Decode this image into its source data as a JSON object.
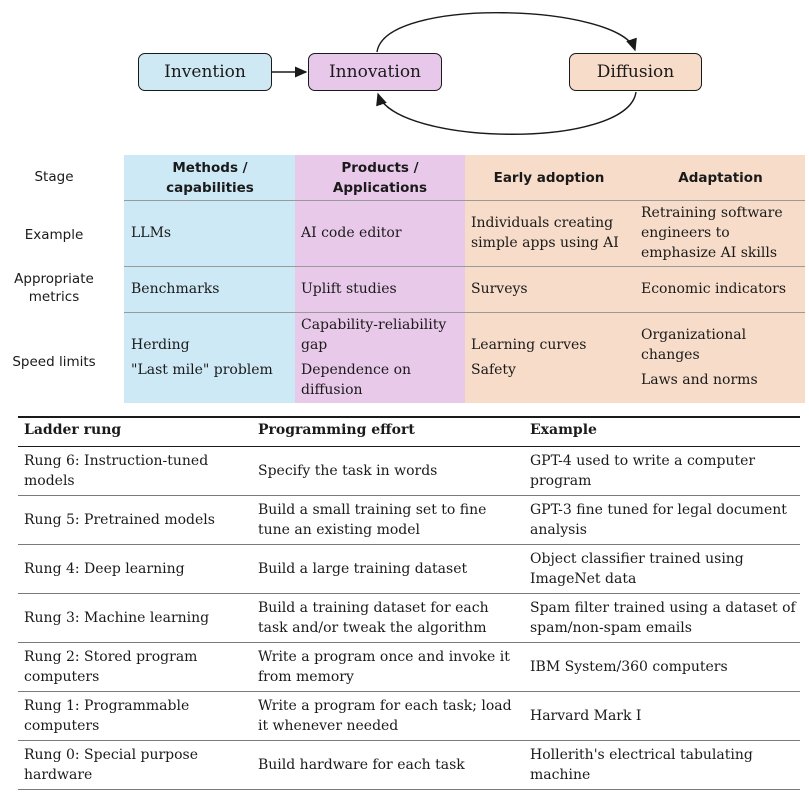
{
  "flow": {
    "nodes": {
      "invention": "Invention",
      "innovation": "Innovation",
      "diffusion": "Diffusion"
    }
  },
  "stage_table": {
    "row_labels": {
      "stage": "Stage",
      "example": "Example",
      "metrics_line1": "Appropriate",
      "metrics_line2": "metrics",
      "speed": "Speed limits"
    },
    "columns": {
      "methods": "Methods / capabilities",
      "products": "Products / Applications",
      "early": "Early adoption",
      "adaptation": "Adaptation"
    },
    "examples": {
      "methods": "LLMs",
      "products": "AI code editor",
      "early": "Individuals creating simple apps using AI",
      "adaptation": "Retraining software engineers to emphasize AI skills"
    },
    "metrics": {
      "methods": "Benchmarks",
      "products": "Uplift studies",
      "early": "Surveys",
      "adaptation": "Economic indicators"
    },
    "speed_limits": {
      "methods": [
        "Herding",
        "\"Last mile\" problem"
      ],
      "products": [
        "Capability-reliability gap",
        "Dependence on diffusion"
      ],
      "early": [
        "Learning curves",
        "Safety"
      ],
      "adaptation": [
        "Organizational changes",
        "Laws and norms"
      ]
    }
  },
  "ladder": {
    "headers": {
      "rung": "Ladder rung",
      "effort": "Programming effort",
      "example": "Example"
    },
    "rows": [
      {
        "rung": "Rung 6: Instruction-tuned models",
        "effort": "Specify the task in words",
        "example": "GPT-4 used to write a computer program"
      },
      {
        "rung": "Rung 5: Pretrained models",
        "effort": "Build a small training set to fine tune an existing model",
        "example": "GPT-3 fine tuned for legal document analysis"
      },
      {
        "rung": "Rung 4: Deep learning",
        "effort": "Build a large training dataset",
        "example": "Object classifier trained using ImageNet data"
      },
      {
        "rung": "Rung 3: Machine learning",
        "effort": "Build a training dataset for each task and/or tweak the algorithm",
        "example": "Spam filter trained using a dataset of spam/non-spam emails"
      },
      {
        "rung": "Rung 2: Stored program computers",
        "effort": "Write a program once and invoke it from memory",
        "example": "IBM System/360 computers"
      },
      {
        "rung": "Rung 1: Programmable computers",
        "effort": "Write a program for each task; load it whenever needed",
        "example": "Harvard Mark I"
      },
      {
        "rung": "Rung 0: Special purpose hardware",
        "effort": "Build hardware for each task",
        "example": "Hollerith's electrical tabulating machine"
      }
    ]
  }
}
